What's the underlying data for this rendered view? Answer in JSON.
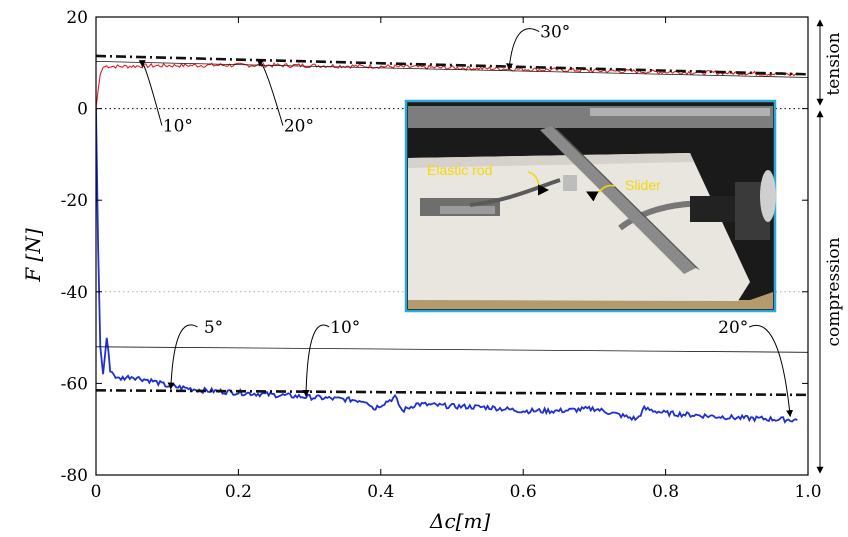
{
  "chart_data": {
    "type": "line",
    "xlabel": "Δc[m]",
    "ylabel": "F [N]",
    "xlim": [
      0,
      1.0
    ],
    "ylim": [
      -80,
      20
    ],
    "x_ticks": [
      0,
      0.2,
      0.4,
      0.6,
      0.8,
      1.0
    ],
    "x_tick_labels": [
      "0",
      "0.2",
      "0.4",
      "0.6",
      "0.8",
      "1.0"
    ],
    "y_ticks": [
      20,
      0,
      -20,
      -40,
      -60,
      -80
    ],
    "y_tick_labels": [
      "20",
      "0",
      "-20",
      "-40",
      "-60",
      "-80"
    ],
    "grid": false,
    "reference_lines": [
      {
        "y": 0,
        "style": "dotted"
      },
      {
        "y": -40,
        "style": "dotted-light"
      }
    ],
    "series": [
      {
        "color": "#e02020",
        "x": [
          0,
          0.003,
          0.006,
          0.01,
          0.015,
          0.03,
          0.06,
          0.1,
          0.2,
          0.3,
          0.4,
          0.5,
          0.6,
          0.7,
          0.8,
          0.9,
          0.95,
          0.985
        ],
        "y": [
          0,
          4,
          7.5,
          9,
          9.3,
          9.2,
          9.3,
          9.4,
          9.5,
          9.4,
          9.2,
          8.9,
          8.6,
          8.3,
          8.0,
          7.8,
          7.6,
          7.4
        ]
      },
      {
        "color": "#1f2fd0",
        "x": [
          0,
          0.003,
          0.006,
          0.01,
          0.015,
          0.02,
          0.03,
          0.05,
          0.08,
          0.1,
          0.15,
          0.2,
          0.25,
          0.3,
          0.35,
          0.38,
          0.39,
          0.42,
          0.43,
          0.45,
          0.5,
          0.55,
          0.6,
          0.65,
          0.7,
          0.75,
          0.76,
          0.77,
          0.8,
          0.85,
          0.9,
          0.95,
          0.985
        ],
        "y": [
          0,
          -30,
          -52,
          -58,
          -50,
          -57,
          -59,
          -58.5,
          -59.5,
          -60.5,
          -61.5,
          -62,
          -62.5,
          -63,
          -63.5,
          -63.8,
          -65.5,
          -63,
          -66,
          -64.5,
          -65,
          -65.2,
          -66,
          -66,
          -65.5,
          -67.5,
          -67.8,
          -65.5,
          -66.5,
          -67,
          -67.5,
          -67.8,
          -68
        ]
      },
      {
        "style": "dash-dot",
        "color": "#111111",
        "x": [
          0,
          1.0
        ],
        "y": [
          11.5,
          7.5
        ]
      },
      {
        "style": "dash-dot",
        "color": "#111111",
        "x": [
          0,
          1.0
        ],
        "y": [
          -61.5,
          -62.5
        ]
      },
      {
        "style": "thin",
        "color": "#111111",
        "x": [
          0,
          1.0
        ],
        "y": [
          10.3,
          6.8
        ]
      },
      {
        "style": "thin",
        "color": "#111111",
        "x": [
          0,
          1.0
        ],
        "y": [
          -52,
          -53.2
        ]
      }
    ],
    "annotations": [
      {
        "text": "30°",
        "x": 0.58,
        "y": 8.5,
        "label_x": 0.645,
        "label_y": 15.5
      },
      {
        "text": "10°",
        "x": 0.065,
        "y": 9.2,
        "label_x": 0.115,
        "label_y": -5
      },
      {
        "text": "20°",
        "x": 0.23,
        "y": 9.3,
        "label_x": 0.285,
        "label_y": -5
      },
      {
        "text": "5°",
        "x": 0.105,
        "y": -61.2,
        "label_x": 0.165,
        "label_y": -49
      },
      {
        "text": "10°",
        "x": 0.295,
        "y": -62.8,
        "label_x": 0.35,
        "label_y": -49
      },
      {
        "text": "20°",
        "x": 0.975,
        "y": -67.2,
        "label_x": 0.895,
        "label_y": -49
      }
    ],
    "side_labels": [
      "tension",
      "compression"
    ]
  },
  "inset_photo": {
    "labels": [
      "Elastic rod",
      "Slider"
    ],
    "border_color": "#2ea7d6",
    "colors": {
      "background": "#1a1a1a",
      "board": "#e9e6e0",
      "board_edge": "#b59a6d",
      "rail": "#7d7d7d",
      "label": "#f4d60a"
    }
  }
}
